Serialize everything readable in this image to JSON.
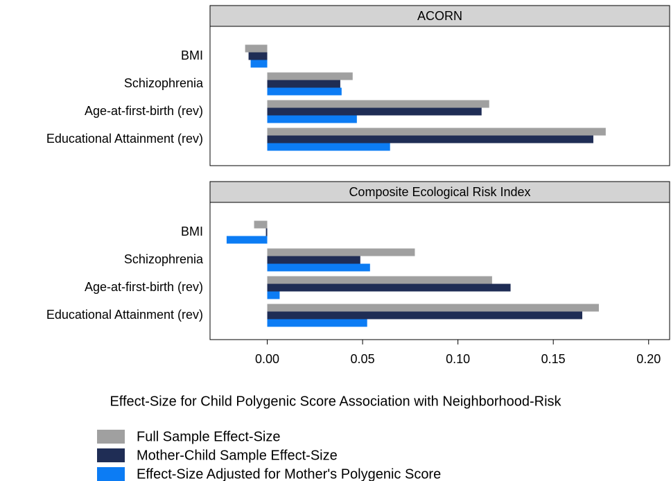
{
  "chart_data": {
    "type": "bar",
    "orientation": "horizontal",
    "xlabel": "Effect-Size for Child Polygenic Score Association with Neighborhood-Risk",
    "categories": [
      "BMI",
      "Schizophrenia",
      "Age-at-first-birth (rev)",
      "Educational Attainment (rev)"
    ],
    "xlim": [
      -0.03,
      0.211
    ],
    "xticks": [
      {
        "value": 0,
        "label": "0.00"
      },
      0.05,
      {
        "value": 0.1,
        "label": "0.10"
      },
      0.15,
      {
        "value": 0.2,
        "label": "0.20"
      }
    ],
    "series": [
      {
        "name": "Full Sample Effect-Size",
        "color": "#a0a0a0"
      },
      {
        "name": "Mother-Child Sample Effect-Size",
        "color": "#1f2d55"
      },
      {
        "name": "Effect-Size Adjusted for Mother's Polygenic Score",
        "color": "#0c7cf4"
      }
    ],
    "panels": [
      {
        "title": "ACORN",
        "values": [
          [
            -0.0116,
            0.0448,
            0.1164,
            0.1775
          ],
          [
            -0.0098,
            0.0383,
            0.1124,
            0.171
          ],
          [
            -0.0087,
            0.039,
            0.047,
            0.0644
          ]
        ]
      },
      {
        "title": "Composite Ecological Risk Index",
        "values": [
          [
            -0.0069,
            0.0774,
            0.1179,
            0.1739
          ],
          [
            -0.0007,
            0.0488,
            0.1276,
            0.1652
          ],
          [
            -0.0213,
            0.0539,
            0.0065,
            0.0524
          ]
        ]
      }
    ]
  }
}
